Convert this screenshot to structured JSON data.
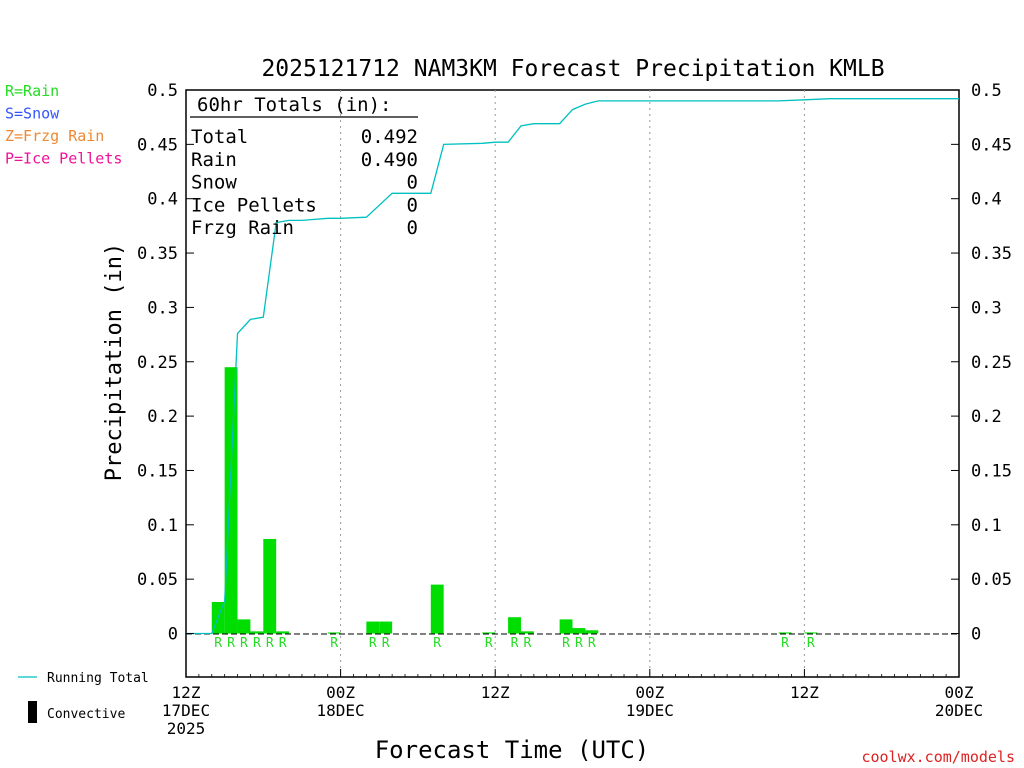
{
  "chart_data": {
    "type": "bar",
    "title": "2025121712 NAM3KM Forecast Precipitation KMLB",
    "ylabel": "Precipitation (in)",
    "xlabel": "Forecast Time (UTC)",
    "ylim": [
      -0.04,
      0.5
    ],
    "xlim": [
      0,
      60
    ],
    "y_ticks": [
      0,
      0.05,
      0.1,
      0.15,
      0.2,
      0.25,
      0.3,
      0.35,
      0.4,
      0.45,
      0.5
    ],
    "y_tick_labels": [
      "0",
      "0.05",
      "0.1",
      "0.15",
      "0.2",
      "0.25",
      "0.3",
      "0.35",
      "0.4",
      "0.45",
      "0.5"
    ],
    "x_ticks": [
      {
        "hour": 0,
        "line1": "12Z",
        "line2": "17DEC",
        "line3": "2025"
      },
      {
        "hour": 12,
        "line1": "00Z",
        "line2": "18DEC",
        "line3": ""
      },
      {
        "hour": 24,
        "line1": "12Z",
        "line2": "",
        "line3": ""
      },
      {
        "hour": 36,
        "line1": "00Z",
        "line2": "19DEC",
        "line3": ""
      },
      {
        "hour": 48,
        "line1": "12Z",
        "line2": "",
        "line3": ""
      },
      {
        "hour": 60,
        "line1": "00Z",
        "line2": "20DEC",
        "line3": ""
      }
    ],
    "grid_hours": [
      12,
      24,
      36,
      48
    ],
    "hourly": [
      {
        "hour": 1,
        "value": 0,
        "type": ""
      },
      {
        "hour": 2,
        "value": 0,
        "type": ""
      },
      {
        "hour": 3,
        "value": 0.029,
        "type": "R"
      },
      {
        "hour": 4,
        "value": 0.245,
        "type": "R"
      },
      {
        "hour": 5,
        "value": 0.013,
        "type": "R"
      },
      {
        "hour": 6,
        "value": 0.002,
        "type": "R"
      },
      {
        "hour": 7,
        "value": 0.087,
        "type": "R"
      },
      {
        "hour": 8,
        "value": 0.002,
        "type": "R"
      },
      {
        "hour": 9,
        "value": 0,
        "type": ""
      },
      {
        "hour": 10,
        "value": 0,
        "type": ""
      },
      {
        "hour": 11,
        "value": 0,
        "type": ""
      },
      {
        "hour": 12,
        "value": 0.001,
        "type": "R"
      },
      {
        "hour": 13,
        "value": 0,
        "type": ""
      },
      {
        "hour": 14,
        "value": 0,
        "type": ""
      },
      {
        "hour": 15,
        "value": 0.011,
        "type": "R"
      },
      {
        "hour": 16,
        "value": 0.011,
        "type": "R"
      },
      {
        "hour": 17,
        "value": 0,
        "type": ""
      },
      {
        "hour": 18,
        "value": 0,
        "type": ""
      },
      {
        "hour": 19,
        "value": 0,
        "type": ""
      },
      {
        "hour": 20,
        "value": 0.045,
        "type": "R"
      },
      {
        "hour": 21,
        "value": 0,
        "type": ""
      },
      {
        "hour": 22,
        "value": 0,
        "type": ""
      },
      {
        "hour": 23,
        "value": 0,
        "type": ""
      },
      {
        "hour": 24,
        "value": 0.001,
        "type": "R"
      },
      {
        "hour": 25,
        "value": 0,
        "type": ""
      },
      {
        "hour": 26,
        "value": 0.015,
        "type": "R"
      },
      {
        "hour": 27,
        "value": 0.002,
        "type": "R"
      },
      {
        "hour": 28,
        "value": 0,
        "type": ""
      },
      {
        "hour": 29,
        "value": 0,
        "type": ""
      },
      {
        "hour": 30,
        "value": 0.013,
        "type": "R"
      },
      {
        "hour": 31,
        "value": 0.005,
        "type": "R"
      },
      {
        "hour": 32,
        "value": 0.003,
        "type": "R"
      },
      {
        "hour": 47,
        "value": 0.001,
        "type": "R"
      },
      {
        "hour": 49,
        "value": 0.001,
        "type": "R"
      }
    ],
    "running_total": [
      {
        "hour": 0,
        "value": 0
      },
      {
        "hour": 2,
        "value": 0
      },
      {
        "hour": 3,
        "value": 0.03
      },
      {
        "hour": 4,
        "value": 0.276
      },
      {
        "hour": 5,
        "value": 0.289
      },
      {
        "hour": 6,
        "value": 0.291
      },
      {
        "hour": 7,
        "value": 0.378
      },
      {
        "hour": 8,
        "value": 0.38
      },
      {
        "hour": 9,
        "value": 0.38
      },
      {
        "hour": 11,
        "value": 0.382
      },
      {
        "hour": 12,
        "value": 0.382
      },
      {
        "hour": 14,
        "value": 0.383
      },
      {
        "hour": 15,
        "value": 0.394
      },
      {
        "hour": 16,
        "value": 0.405
      },
      {
        "hour": 18,
        "value": 0.405
      },
      {
        "hour": 19,
        "value": 0.405
      },
      {
        "hour": 20,
        "value": 0.45
      },
      {
        "hour": 23,
        "value": 0.451
      },
      {
        "hour": 24,
        "value": 0.452
      },
      {
        "hour": 25,
        "value": 0.452
      },
      {
        "hour": 26,
        "value": 0.467
      },
      {
        "hour": 27,
        "value": 0.469
      },
      {
        "hour": 29,
        "value": 0.469
      },
      {
        "hour": 30,
        "value": 0.482
      },
      {
        "hour": 31,
        "value": 0.487
      },
      {
        "hour": 32,
        "value": 0.49
      },
      {
        "hour": 46,
        "value": 0.49
      },
      {
        "hour": 48,
        "value": 0.491
      },
      {
        "hour": 50,
        "value": 0.492
      },
      {
        "hour": 60,
        "value": 0.492
      }
    ],
    "totals_box": {
      "header": "60hr Totals (in):",
      "rows": [
        {
          "label": "Total",
          "value": "0.492"
        },
        {
          "label": "Rain",
          "value": "0.490"
        },
        {
          "label": "Snow",
          "value": "0"
        },
        {
          "label": "Ice Pellets",
          "value": "0"
        },
        {
          "label": "Frzg Rain",
          "value": "0"
        }
      ]
    },
    "type_legend": [
      {
        "text": "R=Rain",
        "color": "#22dd22"
      },
      {
        "text": "S=Snow",
        "color": "#3355ff"
      },
      {
        "text": "Z=Frzg Rain",
        "color": "#ee8833"
      },
      {
        "text": "P=Ice Pellets",
        "color": "#ee1199"
      }
    ],
    "series_legend": [
      {
        "text": "Running Total",
        "kind": "line"
      },
      {
        "text": "Convective",
        "kind": "box"
      }
    ],
    "colors": {
      "bar": "#00dd00",
      "running_total": "#00c0c0",
      "rain_label": "#22dd22",
      "convective": "#000000",
      "axis": "#000000",
      "grid": "#999999"
    }
  },
  "credit": "coolwx.com/models",
  "credit_color": "#dd2222"
}
